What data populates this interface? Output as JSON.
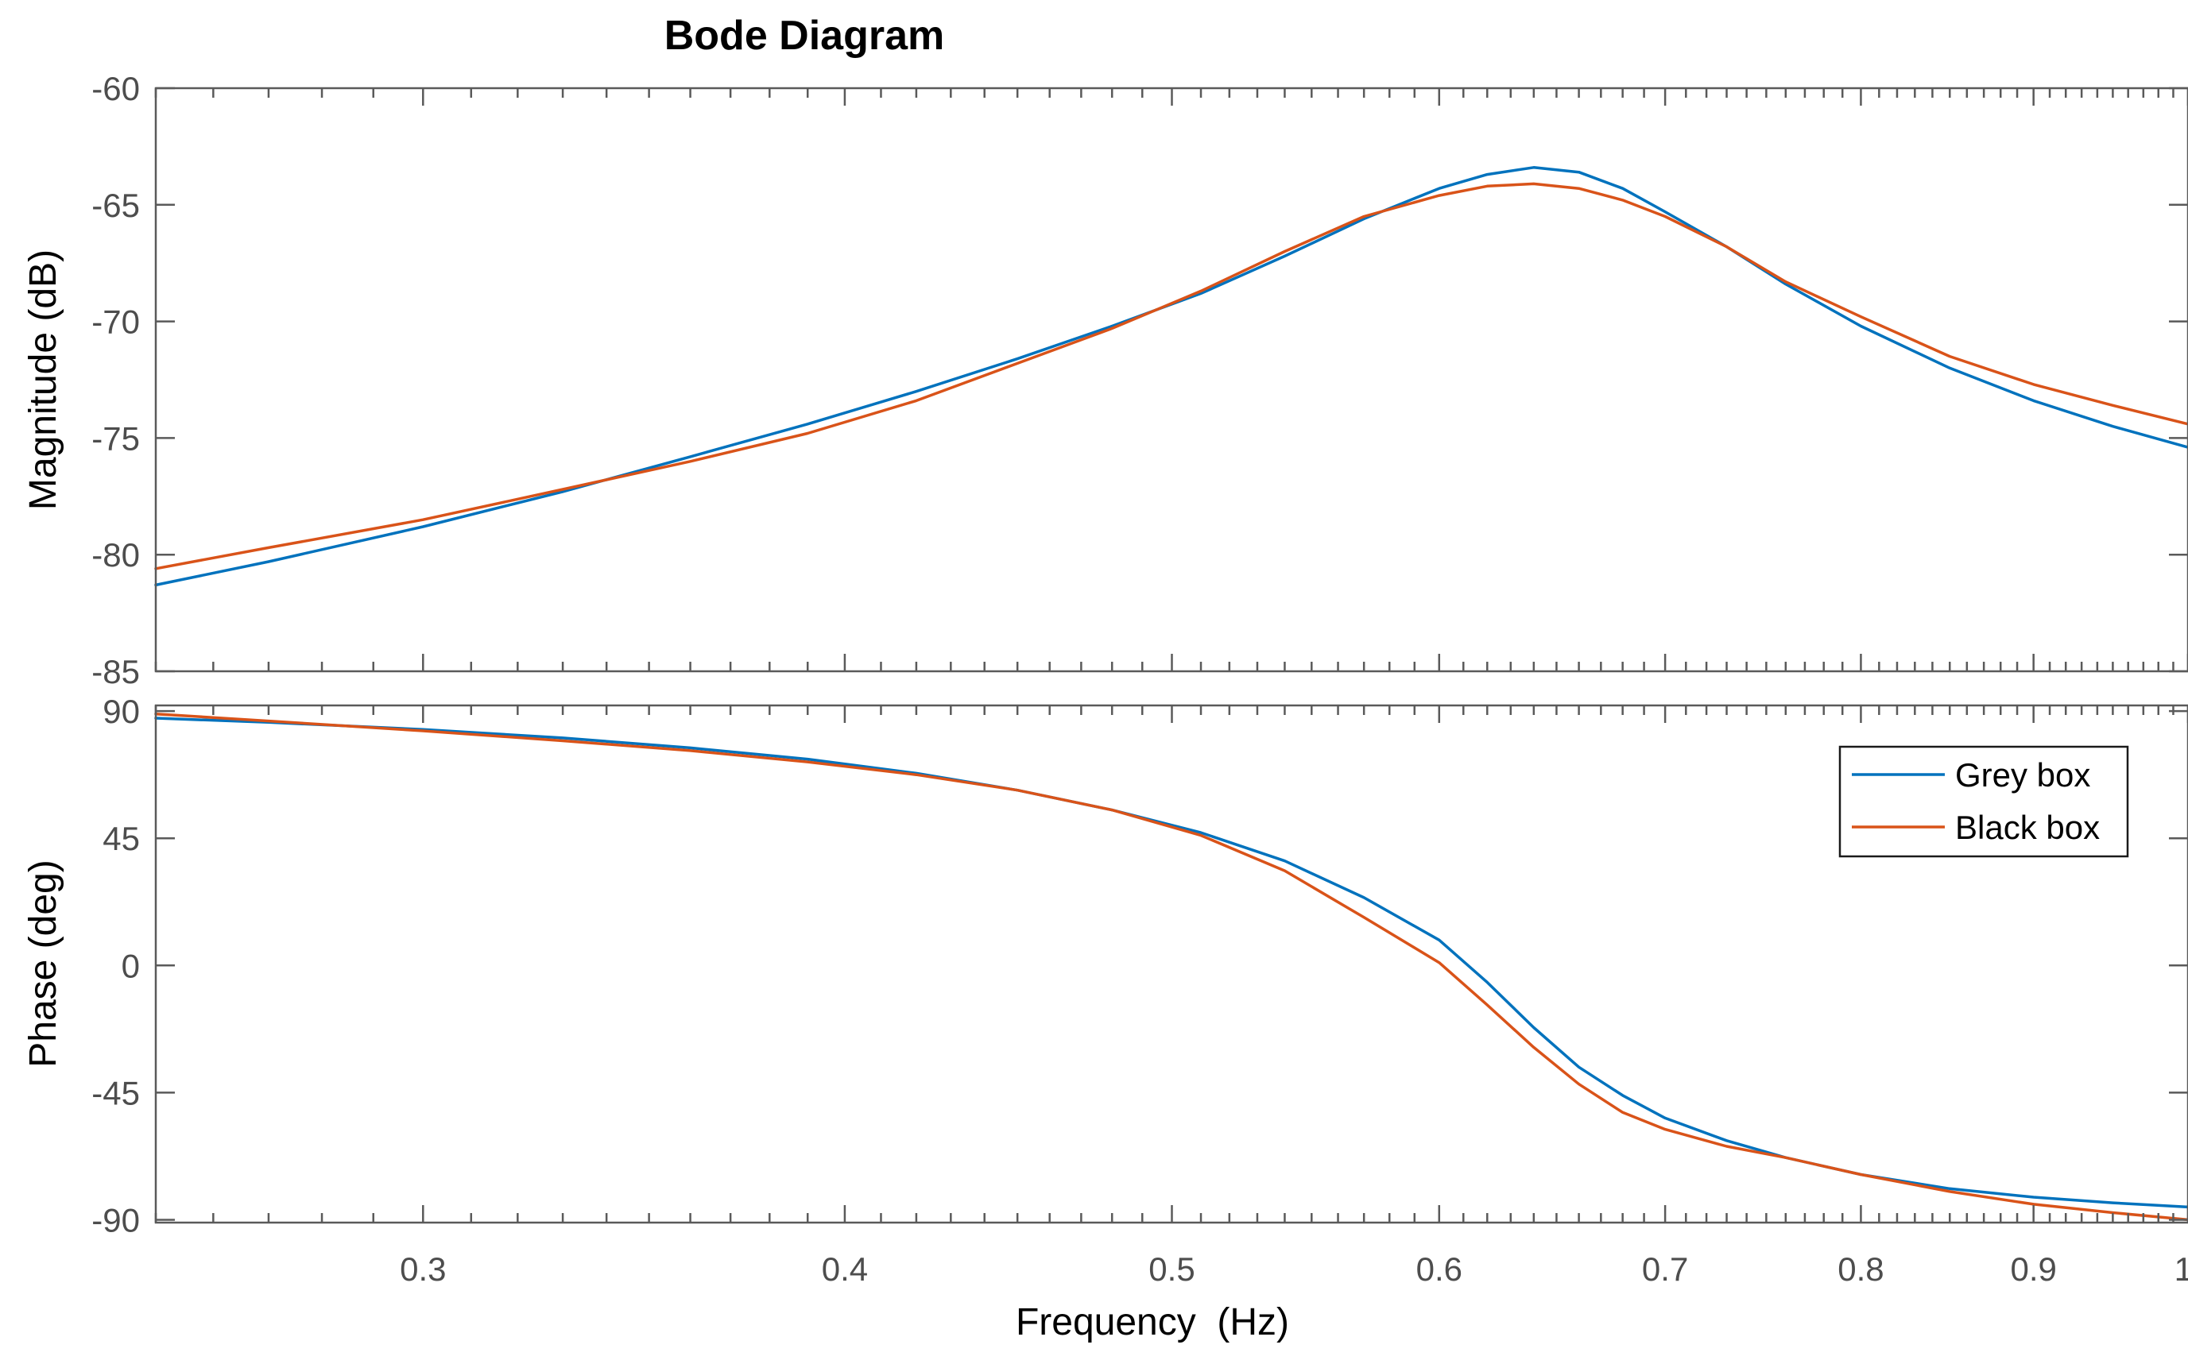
{
  "chart_data": {
    "type": "line",
    "title": "Bode Diagram",
    "xlabel": "Frequency  (Hz)",
    "xscale": "log",
    "xlim": [
      0.25,
      1.0
    ],
    "x_ticks": [
      {
        "value": 0.3,
        "label": "0.3"
      },
      {
        "value": 0.4,
        "label": "0.4"
      },
      {
        "value": 0.5,
        "label": "0.5"
      },
      {
        "value": 0.6,
        "label": "0.6"
      },
      {
        "value": 0.7,
        "label": "0.7"
      },
      {
        "value": 0.8,
        "label": "0.8"
      },
      {
        "value": 0.9,
        "label": "0.9"
      },
      {
        "value": 1.0,
        "label": "1"
      }
    ],
    "legend": {
      "placement": "top-right of phase plot",
      "entries": [
        {
          "label": "Grey box",
          "color": "#0072BD"
        },
        {
          "label": "Black box",
          "color": "#D95319"
        }
      ]
    },
    "panels": [
      {
        "name": "magnitude",
        "ylabel": "Magnitude (dB)",
        "ylim": [
          -85,
          -60
        ],
        "y_ticks": [
          {
            "value": -60,
            "label": "-60"
          },
          {
            "value": -65,
            "label": "-65"
          },
          {
            "value": -70,
            "label": "-70"
          },
          {
            "value": -75,
            "label": "-75"
          },
          {
            "value": -80,
            "label": "-80"
          },
          {
            "value": -85,
            "label": "-85"
          }
        ],
        "series": [
          {
            "name": "Grey box",
            "color": "#0072BD",
            "x": [
              0.25,
              0.27,
              0.3,
              0.33,
              0.36,
              0.39,
              0.42,
              0.45,
              0.48,
              0.51,
              0.54,
              0.57,
              0.6,
              0.62,
              0.64,
              0.66,
              0.68,
              0.7,
              0.73,
              0.76,
              0.8,
              0.85,
              0.9,
              0.95,
              1.0
            ],
            "y": [
              -81.3,
              -80.3,
              -78.8,
              -77.3,
              -75.8,
              -74.4,
              -73.0,
              -71.6,
              -70.2,
              -68.8,
              -67.2,
              -65.6,
              -64.3,
              -63.7,
              -63.4,
              -63.6,
              -64.3,
              -65.3,
              -66.8,
              -68.4,
              -70.2,
              -72.0,
              -73.4,
              -74.5,
              -75.4
            ]
          },
          {
            "name": "Black box",
            "color": "#D95319",
            "x": [
              0.25,
              0.27,
              0.3,
              0.33,
              0.36,
              0.39,
              0.42,
              0.45,
              0.48,
              0.51,
              0.54,
              0.57,
              0.6,
              0.62,
              0.64,
              0.66,
              0.68,
              0.7,
              0.73,
              0.76,
              0.8,
              0.85,
              0.9,
              0.95,
              1.0
            ],
            "y": [
              -80.6,
              -79.7,
              -78.5,
              -77.2,
              -76.0,
              -74.8,
              -73.4,
              -71.8,
              -70.3,
              -68.7,
              -67.0,
              -65.5,
              -64.6,
              -64.2,
              -64.1,
              -64.3,
              -64.8,
              -65.5,
              -66.8,
              -68.3,
              -69.8,
              -71.5,
              -72.7,
              -73.6,
              -74.4
            ]
          }
        ]
      },
      {
        "name": "phase",
        "ylabel": "Phase (deg)",
        "ylim": [
          -91,
          92
        ],
        "y_ticks": [
          {
            "value": 90,
            "label": "90"
          },
          {
            "value": 45,
            "label": "45"
          },
          {
            "value": 0,
            "label": "0"
          },
          {
            "value": -45,
            "label": "-45"
          },
          {
            "value": -90,
            "label": "-90"
          }
        ],
        "series": [
          {
            "name": "Grey box",
            "color": "#0072BD",
            "x": [
              0.25,
              0.27,
              0.3,
              0.33,
              0.36,
              0.39,
              0.42,
              0.45,
              0.48,
              0.51,
              0.54,
              0.57,
              0.6,
              0.62,
              0.64,
              0.66,
              0.68,
              0.7,
              0.73,
              0.76,
              0.8,
              0.85,
              0.9,
              0.95,
              1.0
            ],
            "y": [
              87.5,
              86.0,
              83.5,
              80.5,
              77.0,
              73.0,
              68.0,
              62.0,
              55.0,
              47.0,
              37.0,
              24.0,
              9.0,
              -6.0,
              -22.0,
              -36.0,
              -46.0,
              -54.0,
              -62.0,
              -68.0,
              -74.0,
              -79.0,
              -82.0,
              -84.0,
              -85.5
            ]
          },
          {
            "name": "Black box",
            "color": "#D95319",
            "x": [
              0.25,
              0.27,
              0.3,
              0.33,
              0.36,
              0.39,
              0.42,
              0.45,
              0.48,
              0.51,
              0.54,
              0.57,
              0.6,
              0.62,
              0.64,
              0.66,
              0.68,
              0.7,
              0.73,
              0.76,
              0.8,
              0.85,
              0.9,
              0.95,
              1.0
            ],
            "y": [
              89.0,
              86.5,
              83.0,
              79.5,
              76.0,
              72.0,
              67.5,
              62.0,
              55.0,
              46.0,
              33.5,
              17.0,
              1.0,
              -14.0,
              -29.0,
              -42.0,
              -52.0,
              -58.0,
              -64.0,
              -68.0,
              -74.0,
              -80.0,
              -84.5,
              -87.5,
              -90.0
            ]
          }
        ]
      }
    ]
  }
}
